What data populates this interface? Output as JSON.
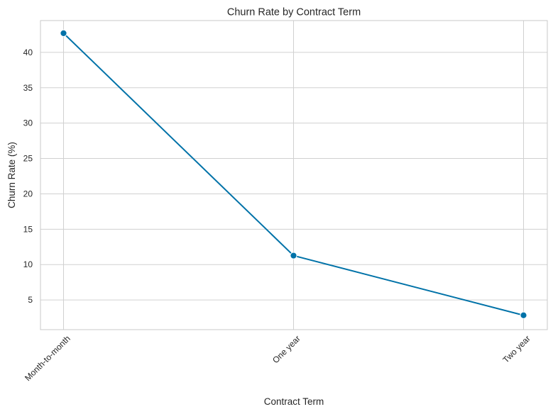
{
  "chart_data": {
    "type": "line",
    "title": "Churn Rate by Contract Term",
    "xlabel": "Contract Term",
    "ylabel": "Churn Rate (%)",
    "categories": [
      "Month-to-month",
      "One year",
      "Two year"
    ],
    "series": [
      {
        "values": [
          42.71,
          11.27,
          2.83
        ]
      }
    ],
    "ylim": [
      0.8,
      44.5
    ],
    "yticks": [
      5,
      10,
      15,
      20,
      25,
      30,
      35,
      40
    ],
    "grid": true,
    "colors": {
      "line": "#0072a8",
      "grid": "#d0d0d0",
      "axis": "#c8c8c8",
      "background": "#ffffff"
    }
  }
}
